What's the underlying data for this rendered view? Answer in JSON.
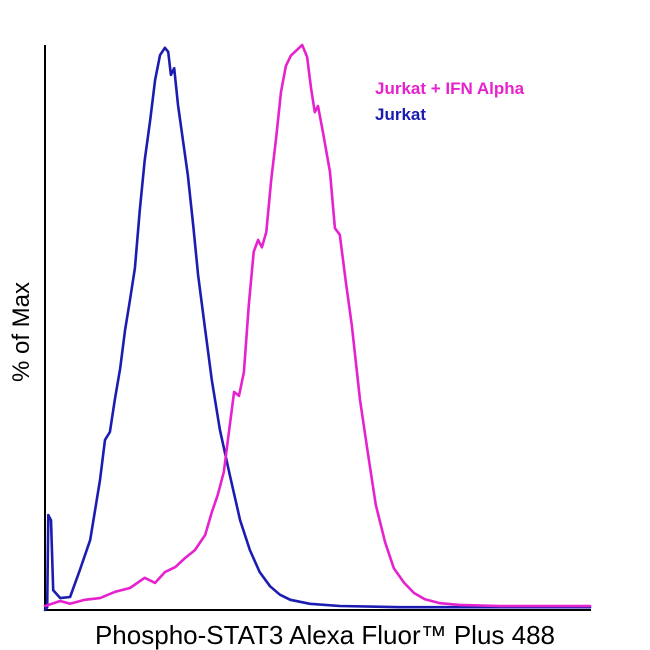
{
  "chart_data": {
    "type": "line",
    "title": "",
    "xlabel": "Phospho-STAT3  Alexa Fluor™ Plus 488",
    "ylabel": "% of Max",
    "x_range": [
      0,
      100
    ],
    "y_range": [
      0,
      100
    ],
    "grid": false,
    "legend_position": "top-right",
    "axis_color": "#000000",
    "background_color": "#ffffff",
    "series": [
      {
        "name": "Jurkat + IFN Alpha",
        "color": "#e622cf",
        "points": [
          [
            0,
            0.7
          ],
          [
            2.8,
            1.6
          ],
          [
            4.6,
            1.1
          ],
          [
            7.3,
            1.8
          ],
          [
            10.1,
            2.1
          ],
          [
            12.8,
            3.2
          ],
          [
            15.6,
            3.9
          ],
          [
            18.3,
            5.7
          ],
          [
            20.2,
            4.8
          ],
          [
            22,
            6.7
          ],
          [
            23.9,
            7.6
          ],
          [
            25.7,
            9.2
          ],
          [
            27.5,
            10.6
          ],
          [
            29.4,
            13.3
          ],
          [
            30.6,
            17.3
          ],
          [
            31.7,
            20.4
          ],
          [
            32.8,
            24.4
          ],
          [
            33.8,
            31.9
          ],
          [
            34.7,
            38.6
          ],
          [
            35.6,
            37.9
          ],
          [
            36.5,
            42.1
          ],
          [
            37.4,
            54
          ],
          [
            38.3,
            63.4
          ],
          [
            39.1,
            65.5
          ],
          [
            39.8,
            64.2
          ],
          [
            40.6,
            66.9
          ],
          [
            41.5,
            76.1
          ],
          [
            42.4,
            83.5
          ],
          [
            43.3,
            91.7
          ],
          [
            44.2,
            96.3
          ],
          [
            45.1,
            98.1
          ],
          [
            46.2,
            99.1
          ],
          [
            47.2,
            100
          ],
          [
            48.1,
            97.9
          ],
          [
            48.8,
            92.4
          ],
          [
            49.5,
            88.1
          ],
          [
            50.1,
            89.2
          ],
          [
            51,
            84.6
          ],
          [
            52.3,
            77.5
          ],
          [
            53.2,
            67.6
          ],
          [
            54.1,
            66.4
          ],
          [
            55.2,
            58.1
          ],
          [
            56.3,
            50.4
          ],
          [
            57.8,
            37.2
          ],
          [
            59.3,
            27.4
          ],
          [
            60.7,
            18.6
          ],
          [
            62.4,
            12
          ],
          [
            64,
            7.4
          ],
          [
            65.9,
            4.8
          ],
          [
            67.7,
            3
          ],
          [
            69.7,
            1.9
          ],
          [
            72.5,
            1.2
          ],
          [
            76.1,
            0.9
          ],
          [
            83.5,
            0.7
          ],
          [
            100,
            0.7
          ]
        ]
      },
      {
        "name": "Jurkat",
        "color": "#1c1cb0",
        "points": [
          [
            0,
            0
          ],
          [
            0.4,
            0.5
          ],
          [
            0.6,
            16.8
          ],
          [
            1.1,
            15.9
          ],
          [
            1.5,
            3.5
          ],
          [
            2.8,
            2.1
          ],
          [
            4.6,
            2.3
          ],
          [
            6.4,
            7.1
          ],
          [
            8.3,
            12.4
          ],
          [
            9.2,
            17.7
          ],
          [
            10.1,
            23
          ],
          [
            11,
            30.1
          ],
          [
            11.9,
            31.5
          ],
          [
            12.8,
            37.2
          ],
          [
            13.8,
            42.8
          ],
          [
            14.7,
            49.6
          ],
          [
            15.6,
            54.9
          ],
          [
            16.5,
            60.5
          ],
          [
            17.4,
            70.8
          ],
          [
            18.3,
            79.6
          ],
          [
            19.3,
            86.7
          ],
          [
            20.2,
            93.8
          ],
          [
            21.1,
            98.2
          ],
          [
            22,
            99.5
          ],
          [
            22.6,
            98.8
          ],
          [
            23.1,
            94.7
          ],
          [
            23.7,
            95.9
          ],
          [
            24.4,
            89.4
          ],
          [
            25.3,
            83.2
          ],
          [
            26.2,
            77
          ],
          [
            27.2,
            68.1
          ],
          [
            28.1,
            59.3
          ],
          [
            29.4,
            49.6
          ],
          [
            30.6,
            40.7
          ],
          [
            32.1,
            31.9
          ],
          [
            33.9,
            23.9
          ],
          [
            35.8,
            15.9
          ],
          [
            37.6,
            10.6
          ],
          [
            39.4,
            6.7
          ],
          [
            41.3,
            4.2
          ],
          [
            43.1,
            2.7
          ],
          [
            45,
            1.8
          ],
          [
            48.6,
            1.1
          ],
          [
            54.1,
            0.7
          ],
          [
            65.1,
            0.5
          ],
          [
            83.5,
            0.5
          ],
          [
            100,
            0.5
          ]
        ]
      }
    ]
  }
}
